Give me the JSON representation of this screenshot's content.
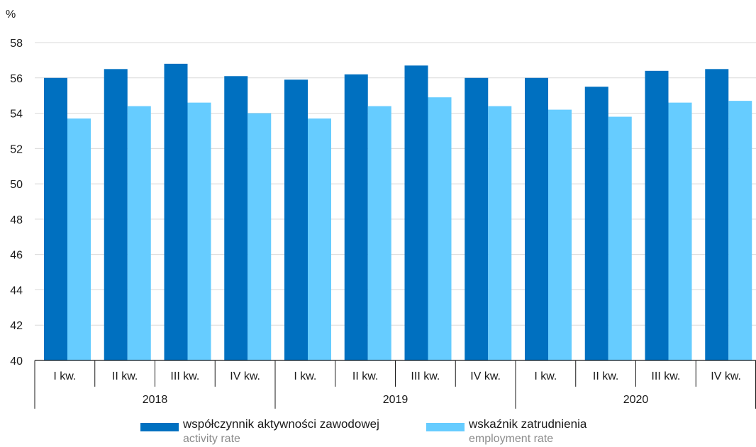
{
  "chart_data": {
    "type": "bar",
    "ylabel": "%",
    "ylim": [
      40,
      58
    ],
    "yticks": [
      40,
      42,
      44,
      46,
      48,
      50,
      52,
      54,
      56,
      58
    ],
    "categories": [
      "I kw.",
      "II kw.",
      "III kw.",
      "IV kw.",
      "I kw.",
      "II kw.",
      "III kw.",
      "IV kw.",
      "I kw.",
      "II kw.",
      "III kw.",
      "IV kw."
    ],
    "groups": [
      {
        "label": "2018",
        "span": 4
      },
      {
        "label": "2019",
        "span": 4
      },
      {
        "label": "2020",
        "span": 4
      }
    ],
    "series": [
      {
        "name": "współczynnik aktywności zawodowej",
        "name_en": "activity rate",
        "color": "#0070C0",
        "values": [
          56.0,
          56.5,
          56.8,
          56.1,
          55.9,
          56.2,
          56.7,
          56.0,
          56.0,
          55.5,
          56.4,
          56.5
        ]
      },
      {
        "name": "wskaźnik zatrudnienia",
        "name_en": "employment rate",
        "color": "#66CCFF",
        "values": [
          53.7,
          54.4,
          54.6,
          54.0,
          53.7,
          54.4,
          54.9,
          54.4,
          54.2,
          53.8,
          54.6,
          54.7
        ]
      }
    ],
    "grid": true,
    "legend": "bottom"
  }
}
